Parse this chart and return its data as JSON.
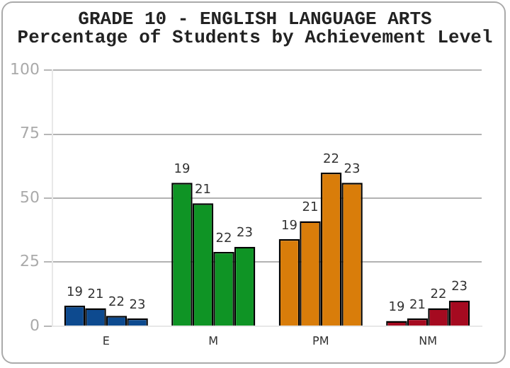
{
  "chart_data": {
    "type": "bar",
    "title": "GRADE 10 - ENGLISH LANGUAGE ARTS",
    "subtitle": "Percentage of Students by Achievement Level",
    "categories": [
      "E",
      "M",
      "PM",
      "NM"
    ],
    "series": [
      {
        "name": "19",
        "colors": [
          "#0d4a8f",
          "#0f9425",
          "#d97d0a",
          "#a50a20"
        ],
        "values": [
          8,
          56,
          34,
          2
        ]
      },
      {
        "name": "21",
        "colors": [
          "#0d4a8f",
          "#0f9425",
          "#d97d0a",
          "#a50a20"
        ],
        "values": [
          7,
          48,
          41,
          3
        ]
      },
      {
        "name": "22",
        "colors": [
          "#0d4a8f",
          "#0f9425",
          "#d97d0a",
          "#a50a20"
        ],
        "values": [
          4,
          29,
          60,
          7
        ]
      },
      {
        "name": "23",
        "colors": [
          "#0d4a8f",
          "#0f9425",
          "#d97d0a",
          "#a50a20"
        ],
        "values": [
          3,
          31,
          56,
          10
        ]
      }
    ],
    "ylim": [
      0,
      100
    ],
    "yticks": [
      0,
      25,
      50,
      75,
      100
    ],
    "grid": "y",
    "legend": false
  }
}
